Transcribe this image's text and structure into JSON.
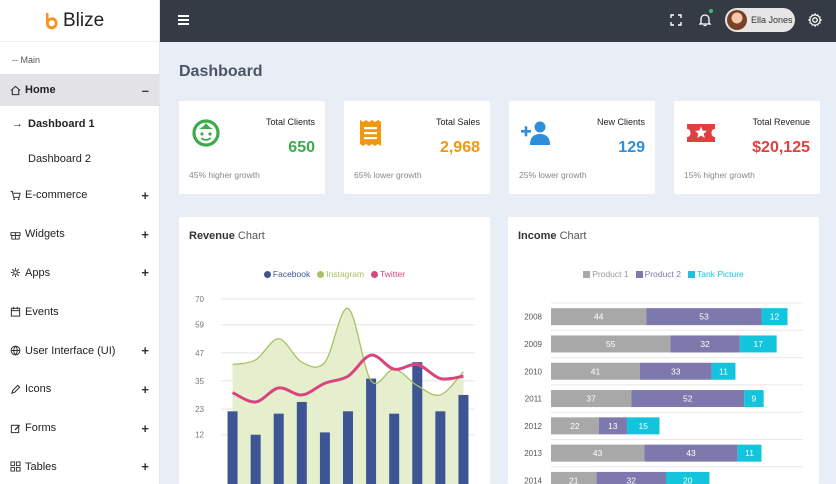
{
  "brand": {
    "name": "Blize"
  },
  "sidebar": {
    "section_label": "-- Main",
    "home": {
      "label": "Home",
      "sign": "–"
    },
    "sub_items": [
      {
        "label": "Dashboard 1",
        "marker": "→"
      },
      {
        "label": "Dashboard 2",
        "marker": ""
      }
    ],
    "items": [
      {
        "label": "E-commerce",
        "icon": "cart-icon",
        "sign": "+"
      },
      {
        "label": "Widgets",
        "icon": "gift-icon",
        "sign": "+"
      },
      {
        "label": "Apps",
        "icon": "apps-icon",
        "sign": "+"
      },
      {
        "label": "Events",
        "icon": "calendar-icon",
        "sign": ""
      },
      {
        "label": "User Interface (UI)",
        "icon": "globe-icon",
        "sign": "+"
      },
      {
        "label": "Icons",
        "icon": "pen-icon",
        "sign": "+"
      },
      {
        "label": "Forms",
        "icon": "edit-icon",
        "sign": "+"
      },
      {
        "label": "Tables",
        "icon": "grid-icon",
        "sign": "+"
      }
    ]
  },
  "topbar": {
    "user_name": "Ella Jones"
  },
  "page": {
    "title": "Dashboard"
  },
  "cards": [
    {
      "title": "Total Clients",
      "value": "650",
      "foot": "45% higher growth",
      "color": "#3daa4b",
      "icon": "smiley-icon"
    },
    {
      "title": "Total Sales",
      "value": "2,968",
      "foot": "65% lower growth",
      "color": "#f0980f",
      "icon": "receipt-icon"
    },
    {
      "title": "New Clients",
      "value": "129",
      "foot": "25% lower growth",
      "color": "#2f8ed9",
      "icon": "add-user-icon"
    },
    {
      "title": "Total Revenue",
      "value": "$20,125",
      "foot": "15% higher growth",
      "color": "#e0403f",
      "icon": "ticket-star-icon"
    }
  ],
  "revenue": {
    "title_bold": "Revenue",
    "title_rest": " Chart"
  },
  "income": {
    "title_bold": "Income",
    "title_rest": " Chart"
  },
  "chart_data": [
    {
      "type": "bar",
      "title": "Revenue Chart",
      "yticks": [
        70,
        59,
        47,
        35,
        23,
        12
      ],
      "ylim": [
        0,
        70
      ],
      "series": [
        {
          "name": "Facebook",
          "type": "bar",
          "color": "#3d5593",
          "values": [
            22,
            12,
            21,
            26,
            13,
            22,
            36,
            21,
            43,
            22,
            29
          ]
        },
        {
          "name": "Instagram",
          "type": "area",
          "color": "#a6c261",
          "values": [
            42,
            44,
            53,
            43,
            43,
            66,
            35,
            40,
            33,
            29,
            39
          ]
        },
        {
          "name": "Twitter",
          "type": "line",
          "color": "#d9457e",
          "values": [
            30,
            26,
            32,
            29,
            34,
            37,
            46,
            40,
            42,
            36,
            37
          ]
        }
      ],
      "legend": "top-center",
      "grid": true
    },
    {
      "type": "bar",
      "orientation": "horizontal",
      "stacked": true,
      "title": "Income Chart",
      "categories": [
        "2008",
        "2009",
        "2010",
        "2011",
        "2012",
        "2013",
        "2014"
      ],
      "series": [
        {
          "name": "Product 1",
          "color": "#a8a8a8",
          "values": [
            44,
            55,
            41,
            37,
            22,
            43,
            21
          ]
        },
        {
          "name": "Product 2",
          "color": "#7e79ac",
          "values": [
            53,
            32,
            33,
            52,
            13,
            43,
            32
          ]
        },
        {
          "name": "Tank Picture",
          "color": "#14c4dc",
          "values": [
            12,
            17,
            11,
            9,
            15,
            11,
            20
          ]
        }
      ],
      "legend": "top-center",
      "grid": true
    }
  ]
}
